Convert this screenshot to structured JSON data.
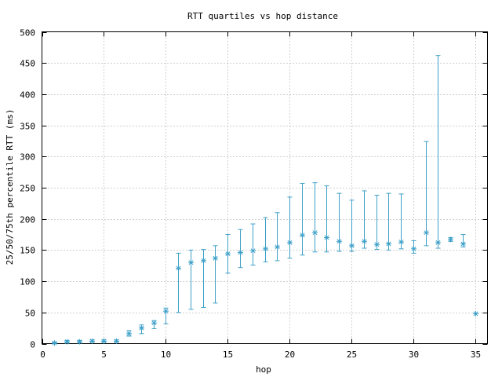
{
  "chart_data": {
    "type": "scatter",
    "title": "RTT quartiles vs hop distance",
    "xlabel": "hop",
    "ylabel": "25/50/75th percentile RTT (ms)",
    "xlim": [
      0,
      36
    ],
    "ylim": [
      0,
      500
    ],
    "xticks": [
      0,
      5,
      10,
      15,
      20,
      25,
      30,
      35
    ],
    "yticks": [
      0,
      50,
      100,
      150,
      200,
      250,
      300,
      350,
      400,
      450,
      500
    ],
    "grid": true,
    "color": "#3ea0c8",
    "series": [
      {
        "points": [
          {
            "x": 1,
            "q25": 0,
            "median": 1,
            "q75": 2
          },
          {
            "x": 2,
            "q25": 2,
            "median": 3,
            "q75": 5
          },
          {
            "x": 3,
            "q25": 2,
            "median": 3,
            "q75": 5
          },
          {
            "x": 4,
            "q25": 3,
            "median": 4,
            "q75": 6
          },
          {
            "x": 5,
            "q25": 3,
            "median": 4,
            "q75": 6
          },
          {
            "x": 6,
            "q25": 3,
            "median": 4,
            "q75": 6
          },
          {
            "x": 7,
            "q25": 12,
            "median": 16,
            "q75": 21
          },
          {
            "x": 8,
            "q25": 16,
            "median": 25,
            "q75": 30
          },
          {
            "x": 9,
            "q25": 24,
            "median": 33,
            "q75": 37
          },
          {
            "x": 10,
            "q25": 32,
            "median": 52,
            "q75": 57
          },
          {
            "x": 11,
            "q25": 50,
            "median": 121,
            "q75": 145
          },
          {
            "x": 12,
            "q25": 55,
            "median": 130,
            "q75": 150
          },
          {
            "x": 13,
            "q25": 58,
            "median": 133,
            "q75": 151
          },
          {
            "x": 14,
            "q25": 65,
            "median": 137,
            "q75": 157
          },
          {
            "x": 15,
            "q25": 113,
            "median": 144,
            "q75": 175
          },
          {
            "x": 16,
            "q25": 122,
            "median": 146,
            "q75": 183
          },
          {
            "x": 17,
            "q25": 126,
            "median": 149,
            "q75": 192
          },
          {
            "x": 18,
            "q25": 131,
            "median": 152,
            "q75": 202
          },
          {
            "x": 19,
            "q25": 133,
            "median": 155,
            "q75": 210
          },
          {
            "x": 20,
            "q25": 137,
            "median": 162,
            "q75": 235
          },
          {
            "x": 21,
            "q25": 142,
            "median": 174,
            "q75": 257
          },
          {
            "x": 22,
            "q25": 147,
            "median": 178,
            "q75": 258
          },
          {
            "x": 23,
            "q25": 147,
            "median": 170,
            "q75": 253
          },
          {
            "x": 24,
            "q25": 148,
            "median": 164,
            "q75": 241
          },
          {
            "x": 25,
            "q25": 148,
            "median": 157,
            "q75": 230
          },
          {
            "x": 26,
            "q25": 153,
            "median": 164,
            "q75": 245
          },
          {
            "x": 27,
            "q25": 151,
            "median": 159,
            "q75": 238
          },
          {
            "x": 28,
            "q25": 150,
            "median": 160,
            "q75": 241
          },
          {
            "x": 29,
            "q25": 152,
            "median": 163,
            "q75": 240
          },
          {
            "x": 30,
            "q25": 145,
            "median": 152,
            "q75": 165
          },
          {
            "x": 31,
            "q25": 157,
            "median": 178,
            "q75": 324
          },
          {
            "x": 32,
            "q25": 153,
            "median": 162,
            "q75": 462
          },
          {
            "x": 33,
            "q25": 164,
            "median": 167,
            "q75": 170
          },
          {
            "x": 34,
            "q25": 155,
            "median": 160,
            "q75": 175
          },
          {
            "x": 35,
            "q25": 48,
            "median": 48,
            "q75": 48
          }
        ]
      }
    ]
  }
}
